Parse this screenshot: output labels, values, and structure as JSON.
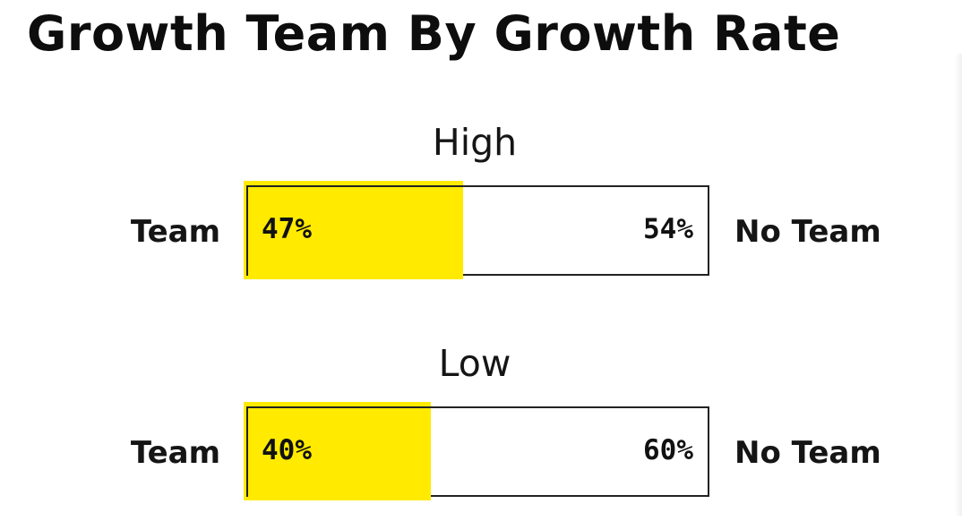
{
  "title": "Growth Team By Growth Rate",
  "chart_data": {
    "type": "bar",
    "orientation": "horizontal",
    "stacked": true,
    "left_label": "Team",
    "right_label": "No Team",
    "groups": [
      {
        "label": "High",
        "team": 47,
        "no_team": 54,
        "team_label": "47%",
        "no_team_label": "54%"
      },
      {
        "label": "Low",
        "team": 40,
        "no_team": 60,
        "team_label": "40%",
        "no_team_label": "60%"
      }
    ],
    "colors": {
      "team": "#ffea00",
      "no_team": "#ffffff",
      "outline": "#222222"
    },
    "grid": false
  }
}
